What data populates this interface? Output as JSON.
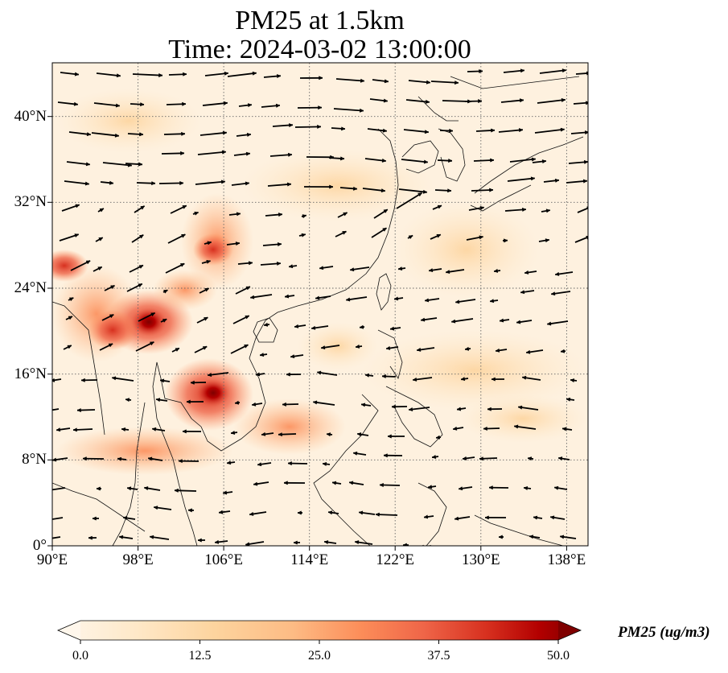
{
  "title_line1": "PM25 at 1.5km",
  "title_line2": "Time: 2024-03-02 13:00:00",
  "map": {
    "lon_range": [
      90,
      140
    ],
    "lat_range": [
      0,
      45
    ],
    "gridlines": "dotted",
    "lon_ticks": [
      {
        "value": 90,
        "label": "90°E"
      },
      {
        "value": 98,
        "label": "98°E"
      },
      {
        "value": 106,
        "label": "106°E"
      },
      {
        "value": 114,
        "label": "114°E"
      },
      {
        "value": 122,
        "label": "122°E"
      },
      {
        "value": 130,
        "label": "130°E"
      },
      {
        "value": 138,
        "label": "138°E"
      }
    ],
    "lat_ticks": [
      {
        "value": 0,
        "label": "0°"
      },
      {
        "value": 8,
        "label": "8°N"
      },
      {
        "value": 16,
        "label": "16°N"
      },
      {
        "value": 24,
        "label": "24°N"
      },
      {
        "value": 32,
        "label": "32°N"
      },
      {
        "value": 40,
        "label": "40°N"
      }
    ]
  },
  "colorbar": {
    "title": "PM25 (ug/m3)",
    "ticks": [
      "0.0",
      "12.5",
      "25.0",
      "37.5",
      "50.0"
    ],
    "colormap": "OrRd",
    "extend": "both",
    "colors": [
      "#fff7ec",
      "#fee8c8",
      "#fdd49e",
      "#fdbb84",
      "#fc8d59",
      "#ef6548",
      "#d7301f",
      "#b30000",
      "#7f0000"
    ]
  }
}
